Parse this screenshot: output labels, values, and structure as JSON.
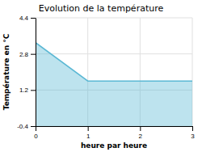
{
  "chart_data": {
    "type": "area",
    "title": "Evolution de la température",
    "xlabel": "heure par heure",
    "ylabel": "Température en °C",
    "x": [
      0,
      1,
      3
    ],
    "values": [
      3.3,
      1.6,
      1.6
    ],
    "color": "#5bb8d4",
    "xlim": [
      0,
      3
    ],
    "ylim": [
      -0.4,
      4.4
    ],
    "xticks": [
      0,
      1,
      2,
      3
    ],
    "yticks": [
      -0.4,
      1.2,
      2.8,
      4.4
    ],
    "grid": true
  }
}
